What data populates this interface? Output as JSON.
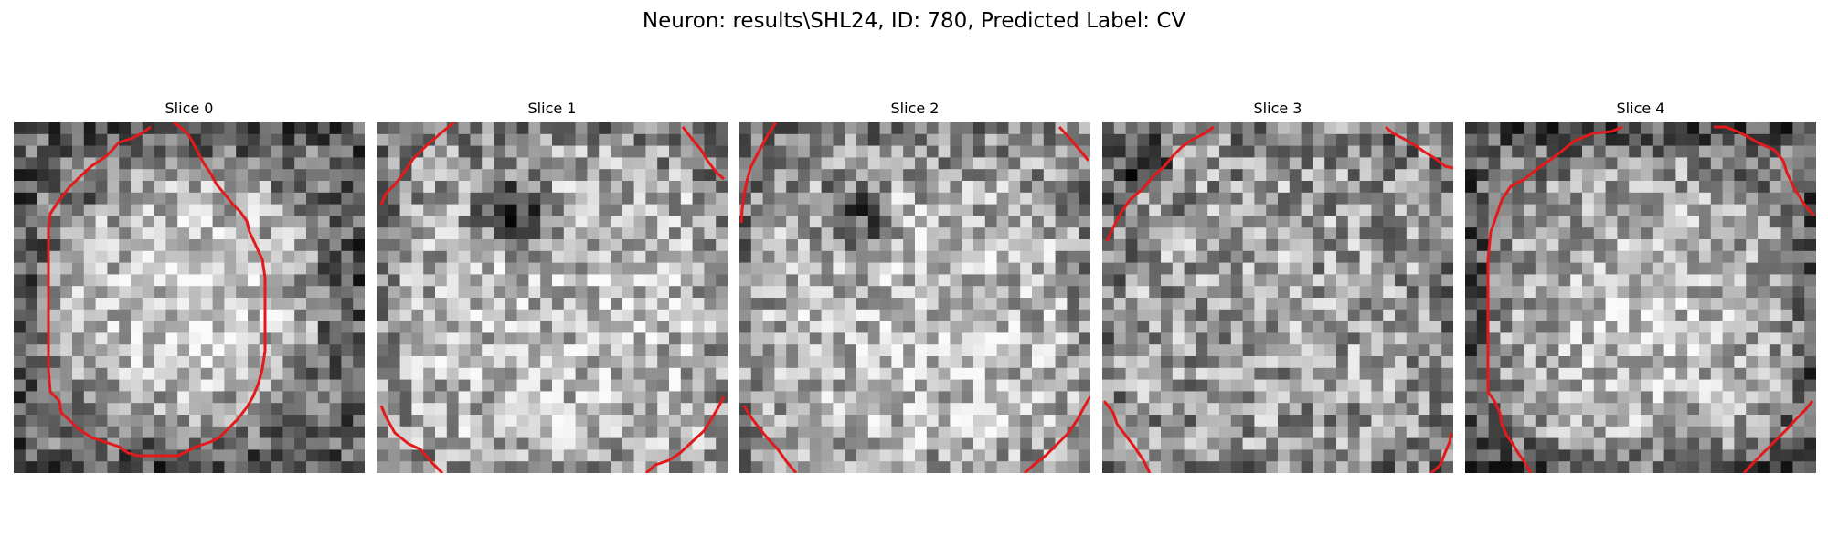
{
  "figure": {
    "title": "Neuron: results\\SHL24, ID: 780, Predicted Label: CV"
  },
  "panels": [
    {
      "title": "Slice 0"
    },
    {
      "title": "Slice 1"
    },
    {
      "title": "Slice 2"
    },
    {
      "title": "Slice 3"
    },
    {
      "title": "Slice 4"
    }
  ],
  "colors": {
    "contour": "#e31a1c",
    "background": "#ffffff"
  }
}
